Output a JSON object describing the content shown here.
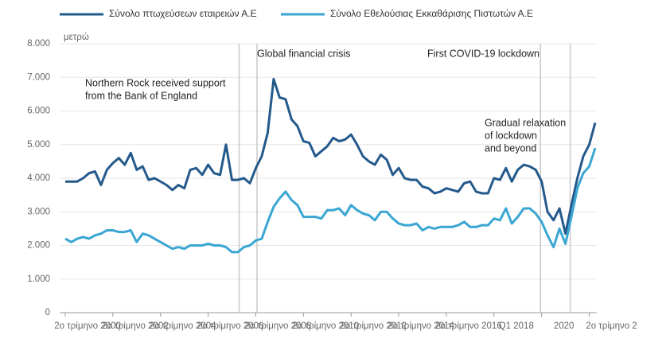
{
  "chart_data": {
    "type": "line",
    "unit_label": "μετρώ",
    "categories": [
      "2ο τρίμηνο 2000",
      null,
      null,
      null,
      null,
      null,
      null,
      null,
      "2ο τρίμηνο 2002",
      null,
      null,
      null,
      null,
      null,
      null,
      null,
      "2ο τρίμηνο 2004",
      null,
      null,
      null,
      null,
      null,
      null,
      null,
      "2ο τρίμηνο 2006",
      null,
      null,
      null,
      null,
      null,
      null,
      null,
      "2ο τρίμηνο 2008",
      null,
      null,
      null,
      null,
      null,
      null,
      null,
      "2ο τρίμηνο 2010",
      null,
      null,
      null,
      null,
      null,
      null,
      null,
      "2ο τρίμηνο 2012",
      null,
      null,
      null,
      null,
      null,
      null,
      null,
      "2ο τρίμηνο 2014",
      null,
      null,
      null,
      null,
      null,
      null,
      null,
      "2ο τρίμηνο 2016",
      null,
      null,
      null,
      null,
      null,
      null,
      null,
      "Q1 2018",
      null,
      null,
      null,
      null,
      null,
      null,
      null,
      "2020",
      null,
      null,
      null,
      null,
      null,
      null,
      null,
      "2ο τρίμηνο 2",
      null
    ],
    "series": [
      {
        "name": "Σύνολο πτωχεύσεων εταιρειών Α.Ε",
        "color": "#24598b",
        "values": [
          3900,
          3900,
          3900,
          4000,
          4150,
          4200,
          3800,
          4250,
          4450,
          4600,
          4400,
          4750,
          4250,
          4350,
          3950,
          4000,
          3900,
          3800,
          3650,
          3800,
          3700,
          4250,
          4300,
          4100,
          4400,
          4150,
          4100,
          5000,
          3950,
          3950,
          4000,
          3850,
          4300,
          4650,
          5350,
          6950,
          6400,
          6350,
          5750,
          5550,
          5100,
          5050,
          4650,
          4800,
          4950,
          5200,
          5100,
          5150,
          5300,
          5000,
          4650,
          4500,
          4400,
          4700,
          4550,
          4100,
          4300,
          4000,
          3950,
          3950,
          3750,
          3700,
          3550,
          3600,
          3700,
          3650,
          3600,
          3850,
          3900,
          3600,
          3550,
          3550,
          4000,
          3950,
          4300,
          3900,
          4250,
          4400,
          4350,
          4250,
          3900,
          3000,
          2750,
          3100,
          2350,
          3200,
          4000,
          4650,
          5000,
          5650
        ]
      },
      {
        "name": "Σύνολο Εθελούσιας Εκκαθάρισης Πιστωτών Α.Ε",
        "color": "#3aa6d2",
        "values": [
          2200,
          2100,
          2200,
          2250,
          2200,
          2300,
          2350,
          2450,
          2450,
          2400,
          2400,
          2450,
          2100,
          2350,
          2300,
          2200,
          2100,
          2000,
          1900,
          1950,
          1900,
          2000,
          2000,
          2000,
          2050,
          2000,
          2000,
          1950,
          1800,
          1800,
          1950,
          2000,
          2150,
          2200,
          2700,
          3150,
          3400,
          3600,
          3350,
          3200,
          2850,
          2850,
          2850,
          2800,
          3050,
          3050,
          3100,
          2900,
          3200,
          3050,
          2950,
          2900,
          2750,
          3000,
          3000,
          2800,
          2650,
          2600,
          2600,
          2650,
          2450,
          2550,
          2500,
          2550,
          2550,
          2550,
          2600,
          2700,
          2550,
          2550,
          2600,
          2600,
          2800,
          2750,
          3100,
          2650,
          2850,
          3100,
          3100,
          2950,
          2700,
          2300,
          1950,
          2500,
          2050,
          2850,
          3700,
          4150,
          4350,
          4900
        ]
      }
    ],
    "ylim": [
      0,
      8000
    ],
    "yticks": [
      0,
      {
        "value": 1000,
        "label": "1.000"
      },
      {
        "value": 2000,
        "label": "2.000"
      },
      {
        "value": 3000,
        "label": "3.000"
      },
      {
        "value": 4000,
        "label": "4.000"
      },
      {
        "value": 5000,
        "label": "5.000"
      },
      {
        "value": 6000,
        "label": "6.000"
      },
      {
        "value": 7000,
        "label": "7.000"
      },
      {
        "value": 8000,
        "label": "8.000"
      }
    ],
    "grid": true,
    "annotations": [
      {
        "lines": [
          "Northern Rock received support",
          "from the Bank of England"
        ]
      },
      {
        "lines": [
          "Global financial crisis"
        ]
      },
      {
        "lines": [
          "First COVID-19 lockdown"
        ]
      },
      {
        "lines": [
          "Gradual relaxation",
          "of lockdown",
          "and beyond"
        ]
      }
    ]
  }
}
